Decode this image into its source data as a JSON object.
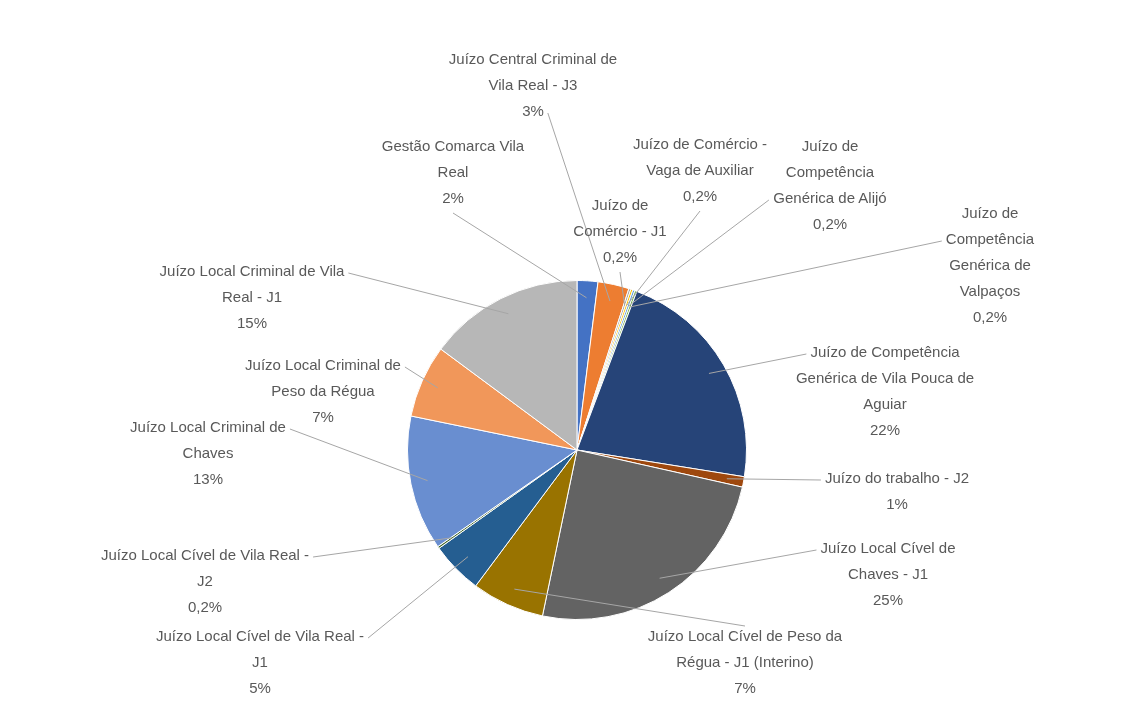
{
  "chart_data": {
    "type": "pie",
    "categories": [
      "Gestão Comarca Vila Real",
      "Juízo Central Criminal de Vila Real - J3",
      "Juízo de Comércio - J1",
      "Juízo de Comércio - Vaga de Auxiliar",
      "Juízo de Competência Genérica de Alijó",
      "Juízo de Competência Genérica de Valpaços",
      "Juízo de Competência Genérica de Vila Pouca de Aguiar",
      "Juízo do trabalho - J2",
      "Juízo Local Cível de Chaves - J1",
      "Juízo Local Cível de Peso da Régua - J1 (Interino)",
      "Juízo Local Cível de Vila Real - J1",
      "Juízo Local Cível de Vila Real - J2",
      "Juízo Local Criminal de Chaves",
      "Juízo Local Criminal de Peso da Régua",
      "Juízo Local Criminal de Vila Real - J1"
    ],
    "values": [
      2,
      3,
      0.2,
      0.2,
      0.2,
      0.2,
      22,
      1,
      25,
      7,
      5,
      0.2,
      13,
      7,
      15
    ],
    "value_labels": [
      "2%",
      "3%",
      "0,2%",
      "0,2%",
      "0,2%",
      "0,2%",
      "22%",
      "1%",
      "25%",
      "7%",
      "5%",
      "0,2%",
      "13%",
      "7%",
      "15%"
    ],
    "colors": [
      "#4472c4",
      "#ed7d31",
      "#a5a5a5",
      "#ffc000",
      "#5b9bd5",
      "#70ad47",
      "#264478",
      "#9e480e",
      "#636363",
      "#997300",
      "#255e91",
      "#43682b",
      "#698ed0",
      "#f1975a",
      "#b7b7b7"
    ],
    "legend": false
  }
}
